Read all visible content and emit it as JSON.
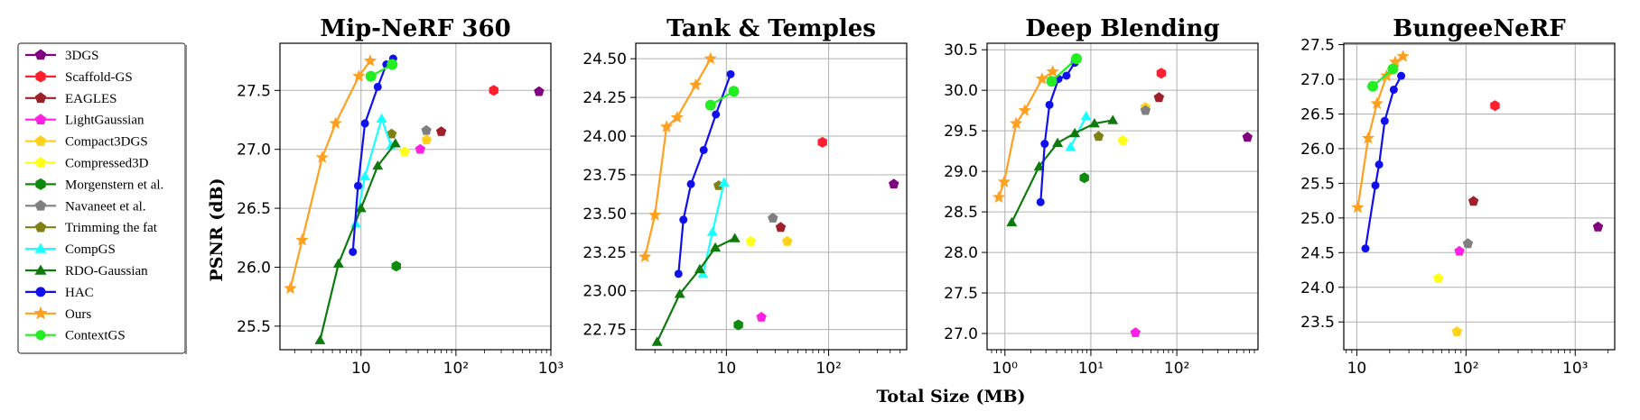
{
  "xlabel_shared": "Total Size (MB)",
  "ylabel_shared": "PSNR (dB)",
  "legend": [
    {
      "name": "3DGS",
      "color": "#800080",
      "marker": "pentagon"
    },
    {
      "name": "Scaffold-GS",
      "color": "#ff1f2e",
      "marker": "hexagon"
    },
    {
      "name": "EAGLES",
      "color": "#a0202a",
      "marker": "pentagon"
    },
    {
      "name": "LightGaussian",
      "color": "#ff20e6",
      "marker": "pentagon"
    },
    {
      "name": "Compact3DGS",
      "color": "#ffd21a",
      "marker": "pentagon"
    },
    {
      "name": "Compressed3D",
      "color": "#ffff1a",
      "marker": "pentagon"
    },
    {
      "name": "Morgenstern et al.",
      "color": "#0e8a0e",
      "marker": "hexagon"
    },
    {
      "name": "Navaneet et al.",
      "color": "#808080",
      "marker": "pentagon"
    },
    {
      "name": "Trimming the fat",
      "color": "#808014",
      "marker": "pentagon"
    },
    {
      "name": "CompGS",
      "color": "#1affff",
      "marker": "triangle"
    },
    {
      "name": "RDO-Gaussian",
      "color": "#0e7a0e",
      "marker": "triangle"
    },
    {
      "name": "HAC",
      "color": "#1010ee",
      "marker": "circle"
    },
    {
      "name": "Ours",
      "color": "#ffa020",
      "marker": "star"
    },
    {
      "name": "ContextGS",
      "color": "#22ee22",
      "marker": "circle"
    }
  ],
  "chart_data": [
    {
      "type": "scatter",
      "title": "Mip-NeRF 360",
      "xscale": "log",
      "xlim": [
        1.4,
        1000
      ],
      "ylim": [
        25.3,
        27.9
      ],
      "xticks": [
        {
          "v": 10,
          "label": "10"
        },
        {
          "v": 100,
          "label": "10²"
        },
        {
          "v": 1000,
          "label": "10³"
        }
      ],
      "yticks": [
        {
          "v": 25.5,
          "label": "25.5"
        },
        {
          "v": 26.0,
          "label": "26.0"
        },
        {
          "v": 26.5,
          "label": "26.5"
        },
        {
          "v": 27.0,
          "label": "27.0"
        },
        {
          "v": 27.5,
          "label": "27.5"
        }
      ],
      "series": [
        {
          "name": "3DGS",
          "points": [
            [
              750,
              27.49
            ]
          ]
        },
        {
          "name": "Scaffold-GS",
          "points": [
            [
              250,
              27.5
            ]
          ]
        },
        {
          "name": "EAGLES",
          "points": [
            [
              70,
              27.15
            ]
          ]
        },
        {
          "name": "LightGaussian",
          "points": [
            [
              42,
              27.0
            ]
          ]
        },
        {
          "name": "Compact3DGS",
          "points": [
            [
              49,
              27.08
            ]
          ]
        },
        {
          "name": "Compressed3D",
          "points": [
            [
              28.8,
              26.98
            ]
          ]
        },
        {
          "name": "Morgenstern et al.",
          "points": [
            [
              23.5,
              26.01
            ]
          ]
        },
        {
          "name": "Navaneet et al.",
          "points": [
            [
              48.8,
              27.16
            ]
          ]
        },
        {
          "name": "Trimming the fat",
          "points": [
            [
              21,
              27.13
            ]
          ]
        },
        {
          "name": "CompGS",
          "points": [
            [
              8.8,
              26.37
            ],
            [
              11,
              26.77
            ],
            [
              16.5,
              27.26
            ],
            [
              20.7,
              27.03
            ]
          ]
        },
        {
          "name": "RDO-Gaussian",
          "points": [
            [
              3.7,
              25.38
            ],
            [
              5.8,
              26.03
            ],
            [
              10,
              26.5
            ],
            [
              15,
              26.86
            ],
            [
              23,
              27.05
            ]
          ]
        },
        {
          "name": "HAC",
          "points": [
            [
              8.2,
              26.13
            ],
            [
              9.3,
              26.69
            ],
            [
              11,
              27.22
            ],
            [
              15,
              27.53
            ],
            [
              18.5,
              27.72
            ],
            [
              21.8,
              27.77
            ]
          ]
        },
        {
          "name": "Ours",
          "points": [
            [
              1.8,
              25.82
            ],
            [
              2.4,
              26.23
            ],
            [
              3.9,
              26.93
            ],
            [
              5.4,
              27.22
            ],
            [
              9.5,
              27.62
            ],
            [
              12.5,
              27.75
            ]
          ]
        },
        {
          "name": "ContextGS",
          "points": [
            [
              12.7,
              27.62
            ],
            [
              21.3,
              27.72
            ]
          ]
        }
      ]
    },
    {
      "type": "scatter",
      "title": "Tank & Temples",
      "xscale": "log",
      "xlim": [
        1.3,
        580
      ],
      "ylim": [
        22.62,
        24.6
      ],
      "xticks": [
        {
          "v": 10,
          "label": "10"
        },
        {
          "v": 100,
          "label": "10²"
        }
      ],
      "yticks": [
        {
          "v": 22.75,
          "label": "22.75"
        },
        {
          "v": 23.0,
          "label": "23.00"
        },
        {
          "v": 23.25,
          "label": "23.25"
        },
        {
          "v": 23.5,
          "label": "23.50"
        },
        {
          "v": 23.75,
          "label": "23.75"
        },
        {
          "v": 24.0,
          "label": "24.00"
        },
        {
          "v": 24.25,
          "label": "24.25"
        },
        {
          "v": 24.5,
          "label": "24.50"
        }
      ],
      "series": [
        {
          "name": "3DGS",
          "points": [
            [
              434,
              23.69
            ]
          ]
        },
        {
          "name": "Scaffold-GS",
          "points": [
            [
              87,
              23.96
            ]
          ]
        },
        {
          "name": "EAGLES",
          "points": [
            [
              34,
              23.41
            ]
          ]
        },
        {
          "name": "LightGaussian",
          "points": [
            [
              22,
              22.83
            ]
          ]
        },
        {
          "name": "Compact3DGS",
          "points": [
            [
              39.4,
              23.32
            ]
          ]
        },
        {
          "name": "Compressed3D",
          "points": [
            [
              17.3,
              23.32
            ]
          ]
        },
        {
          "name": "Morgenstern et al.",
          "points": [
            [
              13.1,
              22.78
            ]
          ]
        },
        {
          "name": "Navaneet et al.",
          "points": [
            [
              28.5,
              23.47
            ]
          ]
        },
        {
          "name": "Trimming the fat",
          "points": [
            [
              8.4,
              23.68
            ]
          ]
        },
        {
          "name": "CompGS",
          "points": [
            [
              5.9,
              23.11
            ],
            [
              7.3,
              23.38
            ],
            [
              9.5,
              23.7
            ]
          ]
        },
        {
          "name": "RDO-Gaussian",
          "points": [
            [
              2.1,
              22.67
            ],
            [
              3.5,
              22.98
            ],
            [
              5.5,
              23.14
            ],
            [
              7.8,
              23.28
            ],
            [
              12.1,
              23.34
            ]
          ]
        },
        {
          "name": "HAC",
          "points": [
            [
              3.4,
              23.11
            ],
            [
              3.8,
              23.46
            ],
            [
              4.5,
              23.69
            ],
            [
              6,
              23.91
            ],
            [
              7.9,
              24.14
            ],
            [
              11,
              24.4
            ]
          ]
        },
        {
          "name": "Ours",
          "points": [
            [
              1.6,
              23.22
            ],
            [
              2,
              23.49
            ],
            [
              2.6,
              24.06
            ],
            [
              3.3,
              24.12
            ],
            [
              5,
              24.33
            ],
            [
              7,
              24.5
            ]
          ]
        },
        {
          "name": "ContextGS",
          "points": [
            [
              7,
              24.2
            ],
            [
              11.8,
              24.29
            ]
          ]
        }
      ]
    },
    {
      "type": "scatter",
      "title": "Deep Blending",
      "xscale": "log",
      "xlim": [
        0.62,
        880
      ],
      "ylim": [
        26.8,
        30.58
      ],
      "xticks": [
        {
          "v": 1,
          "label": "10⁰"
        },
        {
          "v": 10,
          "label": "10¹"
        },
        {
          "v": 100,
          "label": "10²"
        }
      ],
      "yticks": [
        {
          "v": 27.0,
          "label": "27.0"
        },
        {
          "v": 27.5,
          "label": "27.5"
        },
        {
          "v": 28.0,
          "label": "28.0"
        },
        {
          "v": 28.5,
          "label": "28.5"
        },
        {
          "v": 29.0,
          "label": "29.0"
        },
        {
          "v": 29.5,
          "label": "29.5"
        },
        {
          "v": 30.0,
          "label": "30.0"
        },
        {
          "v": 30.5,
          "label": "30.5"
        }
      ],
      "series": [
        {
          "name": "3DGS",
          "points": [
            [
              663,
              29.42
            ]
          ]
        },
        {
          "name": "Scaffold-GS",
          "points": [
            [
              66,
              30.21
            ]
          ]
        },
        {
          "name": "EAGLES",
          "points": [
            [
              62,
              29.91
            ]
          ]
        },
        {
          "name": "LightGaussian",
          "points": [
            [
              33,
              27.01
            ]
          ]
        },
        {
          "name": "Compact3DGS",
          "points": [
            [
              43.2,
              29.79
            ]
          ]
        },
        {
          "name": "Compressed3D",
          "points": [
            [
              23.5,
              29.38
            ]
          ]
        },
        {
          "name": "Morgenstern et al.",
          "points": [
            [
              8.4,
              28.92
            ]
          ]
        },
        {
          "name": "Navaneet et al.",
          "points": [
            [
              43.2,
              29.75
            ]
          ]
        },
        {
          "name": "Trimming the fat",
          "points": [
            [
              12.3,
              29.43
            ]
          ]
        },
        {
          "name": "CompGS",
          "points": [
            [
              5.8,
              29.3
            ],
            [
              8.8,
              29.68
            ]
          ]
        },
        {
          "name": "RDO-Gaussian",
          "points": [
            [
              1.2,
              28.37
            ],
            [
              2.5,
              29.06
            ],
            [
              4.1,
              29.35
            ],
            [
              6.5,
              29.47
            ],
            [
              11,
              29.59
            ],
            [
              18,
              29.63
            ]
          ]
        },
        {
          "name": "HAC",
          "points": [
            [
              2.6,
              28.62
            ],
            [
              2.9,
              29.34
            ],
            [
              3.3,
              29.82
            ],
            [
              4.2,
              30.14
            ],
            [
              5.2,
              30.18
            ],
            [
              6.5,
              30.34
            ]
          ]
        },
        {
          "name": "Ours",
          "points": [
            [
              0.85,
              28.68
            ],
            [
              0.98,
              28.87
            ],
            [
              1.35,
              29.59
            ],
            [
              1.7,
              29.75
            ],
            [
              2.7,
              30.14
            ],
            [
              3.6,
              30.23
            ]
          ]
        },
        {
          "name": "ContextGS",
          "points": [
            [
              3.5,
              30.11
            ],
            [
              6.8,
              30.39
            ]
          ]
        }
      ]
    },
    {
      "type": "scatter",
      "title": "BungeeNeRF",
      "xscale": "log",
      "xlim": [
        7.6,
        2300
      ],
      "ylim": [
        23.1,
        27.52
      ],
      "xticks": [
        {
          "v": 10,
          "label": "10"
        },
        {
          "v": 100,
          "label": "10²"
        },
        {
          "v": 1000,
          "label": "10³"
        }
      ],
      "yticks": [
        {
          "v": 23.5,
          "label": "23.5"
        },
        {
          "v": 24.0,
          "label": "24.0"
        },
        {
          "v": 24.5,
          "label": "24.5"
        },
        {
          "v": 25.0,
          "label": "25.0"
        },
        {
          "v": 25.5,
          "label": "25.5"
        },
        {
          "v": 26.0,
          "label": "26.0"
        },
        {
          "v": 26.5,
          "label": "26.5"
        },
        {
          "v": 27.0,
          "label": "27.0"
        },
        {
          "v": 27.5,
          "label": "27.5"
        }
      ],
      "series": [
        {
          "name": "3DGS",
          "points": [
            [
              1616,
              24.87
            ]
          ]
        },
        {
          "name": "Scaffold-GS",
          "points": [
            [
              184,
              26.62
            ]
          ]
        },
        {
          "name": "EAGLES",
          "points": [
            [
              117,
              25.24
            ]
          ]
        },
        {
          "name": "LightGaussian",
          "points": [
            [
              87,
              24.52
            ]
          ]
        },
        {
          "name": "Compact3DGS",
          "points": [
            [
              82.6,
              23.36
            ]
          ]
        },
        {
          "name": "Compressed3D",
          "points": [
            [
              55.8,
              24.13
            ]
          ]
        },
        {
          "name": "Navaneet et al.",
          "points": [
            [
              104,
              24.63
            ]
          ]
        },
        {
          "name": "HAC",
          "points": [
            [
              12,
              24.56
            ],
            [
              14.8,
              25.47
            ],
            [
              16,
              25.77
            ],
            [
              18,
              26.4
            ],
            [
              21.8,
              26.85
            ],
            [
              25.5,
              27.05
            ]
          ]
        },
        {
          "name": "Ours",
          "points": [
            [
              10.2,
              25.15
            ],
            [
              12.7,
              26.15
            ],
            [
              15.3,
              26.65
            ],
            [
              18.7,
              27.05
            ],
            [
              22.5,
              27.25
            ],
            [
              26.5,
              27.33
            ]
          ]
        },
        {
          "name": "ContextGS",
          "points": [
            [
              14,
              26.9
            ],
            [
              21.4,
              27.15
            ]
          ]
        }
      ]
    }
  ]
}
